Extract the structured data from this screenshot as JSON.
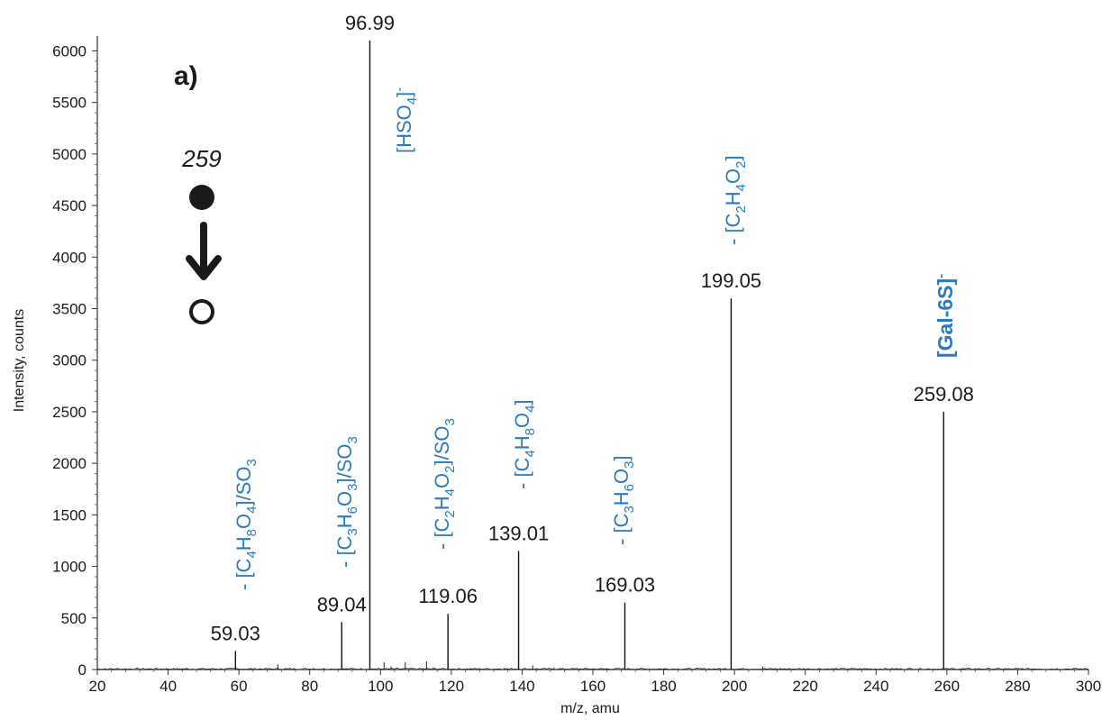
{
  "chart_data": {
    "type": "line",
    "panel_label": "a)",
    "xlabel": "m/z, amu",
    "ylabel": "Intensity, counts",
    "xlim": [
      20,
      300
    ],
    "ylim": [
      0,
      6100
    ],
    "xticks": [
      20,
      40,
      60,
      80,
      100,
      120,
      140,
      160,
      180,
      200,
      220,
      240,
      260,
      280,
      300
    ],
    "yticks": [
      0,
      500,
      1000,
      1500,
      2000,
      2500,
      3000,
      3500,
      4000,
      4500,
      5000,
      5500,
      6000
    ],
    "peaks": [
      {
        "mz": 59.03,
        "intensity": 180,
        "label": "59.03"
      },
      {
        "mz": 89.04,
        "intensity": 460,
        "label": "89.04"
      },
      {
        "mz": 96.99,
        "intensity": 6100,
        "label": "96.99"
      },
      {
        "mz": 119.06,
        "intensity": 540,
        "label": "119.06"
      },
      {
        "mz": 139.01,
        "intensity": 1150,
        "label": "139.01"
      },
      {
        "mz": 169.03,
        "intensity": 650,
        "label": "169.03"
      },
      {
        "mz": 199.05,
        "intensity": 3600,
        "label": "199.05"
      },
      {
        "mz": 259.08,
        "intensity": 2500,
        "label": "259.08"
      }
    ],
    "minor_peaks": [
      {
        "mz": 49,
        "intensity": 10
      },
      {
        "mz": 71,
        "intensity": 50
      },
      {
        "mz": 81,
        "intensity": 15
      },
      {
        "mz": 101,
        "intensity": 70
      },
      {
        "mz": 103,
        "intensity": 30
      },
      {
        "mz": 107,
        "intensity": 70
      },
      {
        "mz": 113,
        "intensity": 80
      },
      {
        "mz": 115,
        "intensity": 20
      },
      {
        "mz": 135,
        "intensity": 15
      },
      {
        "mz": 143,
        "intensity": 40
      },
      {
        "mz": 149,
        "intensity": 20
      },
      {
        "mz": 183,
        "intensity": 8
      },
      {
        "mz": 208,
        "intensity": 30
      },
      {
        "mz": 222,
        "intensity": 8
      }
    ],
    "fragment_annotations": {
      "f59": [
        "- [C",
        "4",
        "H",
        "8",
        "O",
        "4",
        "]/SO",
        "3",
        ""
      ],
      "f89": [
        "- [C",
        "3",
        "H",
        "6",
        "O",
        "3",
        "]/SO",
        "3",
        ""
      ],
      "f97": [
        "[HSO",
        "4",
        "]",
        "-",
        ""
      ],
      "f119": [
        "- [C",
        "2",
        "H",
        "4",
        "O",
        "2",
        "]/SO",
        "3",
        ""
      ],
      "f139": [
        "- [C",
        "4",
        "H",
        "8",
        "O",
        "4",
        "]"
      ],
      "f169": [
        "- [C",
        "3",
        "H",
        "6",
        "O",
        "3",
        "]"
      ],
      "f199": [
        "- [C",
        "2",
        "H",
        "4",
        "O",
        "2",
        "]"
      ],
      "f259": [
        "[Gal-6S]",
        "-",
        ""
      ]
    },
    "precursor": {
      "label": "259",
      "filled_symbol": "●",
      "arrow": "↓",
      "open_symbol": "○"
    }
  }
}
